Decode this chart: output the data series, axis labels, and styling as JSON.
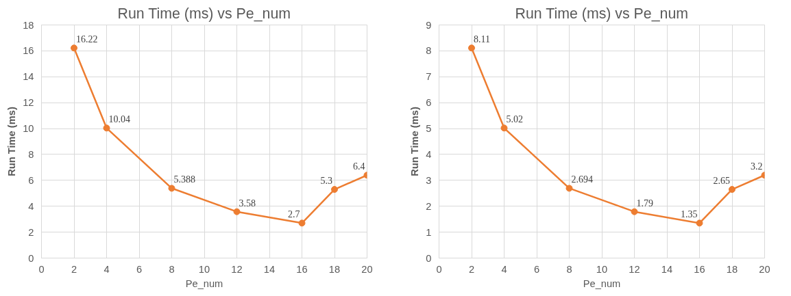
{
  "chart_data": [
    {
      "type": "line",
      "title": "Run Time (ms) vs Pe_num",
      "xlabel": "Pe_num",
      "ylabel": "Run Time (ms)",
      "x": [
        2,
        4,
        8,
        12,
        16,
        18,
        20
      ],
      "series": [
        {
          "color": "#ed7d31",
          "values": [
            16.22,
            10.04,
            5.388,
            3.58,
            2.7,
            5.3,
            6.4
          ]
        }
      ],
      "xlim": [
        0,
        20
      ],
      "xticks": [
        0,
        2,
        4,
        6,
        8,
        10,
        12,
        14,
        16,
        18,
        20
      ],
      "ylim": [
        0,
        18
      ],
      "yticks": [
        0,
        2,
        4,
        6,
        8,
        10,
        12,
        14,
        16,
        18
      ],
      "grid": true,
      "marker": "circle",
      "line_style": "solid",
      "data_labels": true
    },
    {
      "type": "line",
      "title": "Run Time (ms) vs Pe_num",
      "xlabel": "Pe_num",
      "ylabel": "Run Time (ms)",
      "x": [
        2,
        4,
        8,
        12,
        16,
        18,
        20
      ],
      "series": [
        {
          "color": "#ed7d31",
          "values": [
            8.11,
            5.02,
            2.694,
            1.79,
            1.35,
            2.65,
            3.2
          ]
        }
      ],
      "xlim": [
        0,
        20
      ],
      "xticks": [
        0,
        2,
        4,
        6,
        8,
        10,
        12,
        14,
        16,
        18,
        20
      ],
      "ylim": [
        0,
        9
      ],
      "yticks": [
        0,
        1,
        2,
        3,
        4,
        5,
        6,
        7,
        8,
        9
      ],
      "grid": true,
      "marker": "circle",
      "line_style": "solid",
      "data_labels": true
    }
  ]
}
